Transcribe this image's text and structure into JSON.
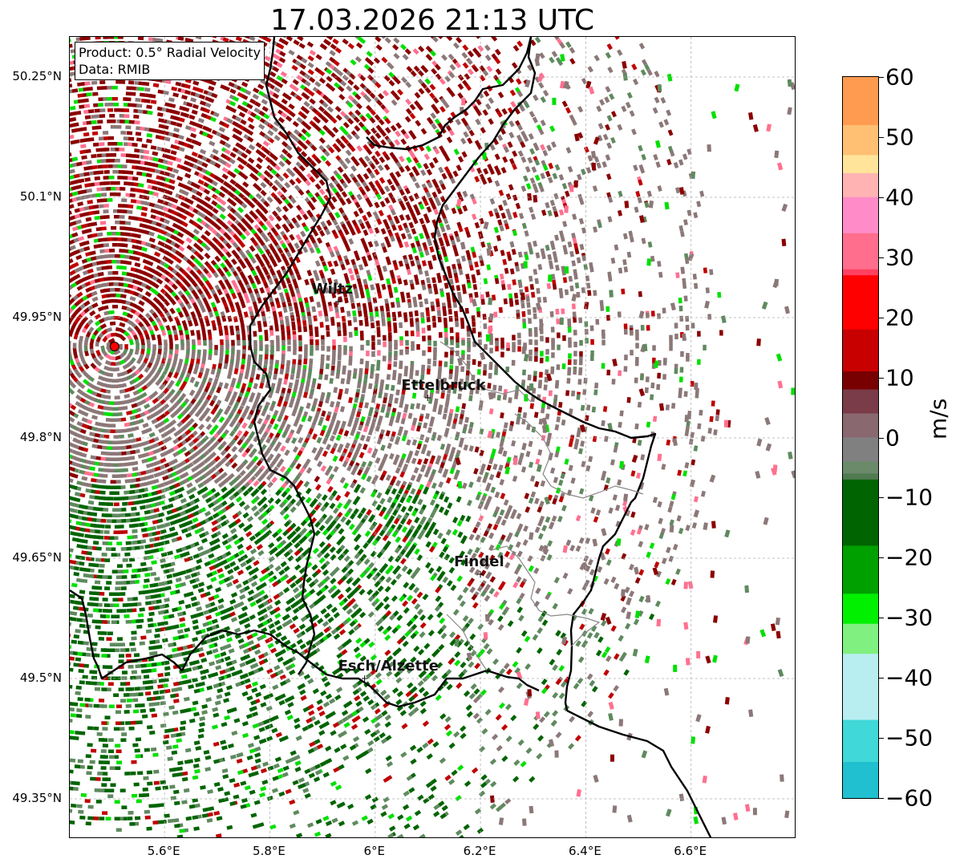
{
  "title": "17.03.2026 21:13 UTC",
  "info_box": {
    "product": "Product: 0.5° Radial Velocity",
    "source": "Data: RMIB"
  },
  "axes": {
    "lon_range": [
      5.42,
      6.8
    ],
    "lat_range": [
      49.3,
      50.3
    ],
    "x_ticks": [
      "5.6°E",
      "5.8°E",
      "6°E",
      "6.2°E",
      "6.4°E",
      "6.6°E"
    ],
    "x_tick_values": [
      5.6,
      5.8,
      6.0,
      6.2,
      6.4,
      6.6
    ],
    "y_ticks": [
      "50.25°N",
      "50.1°N",
      "49.95°N",
      "49.8°N",
      "49.65°N",
      "49.5°N",
      "49.35°N"
    ],
    "y_tick_values": [
      50.25,
      50.1,
      49.95,
      49.8,
      49.65,
      49.5,
      49.35
    ],
    "grid": true
  },
  "radar_site": {
    "lon": 5.505,
    "lat": 49.914,
    "color": "#ff0000"
  },
  "cities": [
    {
      "name": "Wiltz",
      "lon": 5.93,
      "lat": 49.97
    },
    {
      "name": "Ettelbruck",
      "lon": 6.1,
      "lat": 49.85
    },
    {
      "name": "Findel",
      "lon": 6.2,
      "lat": 49.63
    },
    {
      "name": "Esch/Alzette",
      "lon": 5.98,
      "lat": 49.5
    }
  ],
  "colorbar": {
    "label": "m/s",
    "min": -60,
    "max": 60,
    "ticks": [
      "60",
      "50",
      "40",
      "30",
      "20",
      "10",
      "0",
      "−10",
      "−20",
      "−30",
      "−40",
      "−50",
      "−60"
    ],
    "tick_values": [
      60,
      50,
      40,
      30,
      20,
      10,
      0,
      -10,
      -20,
      -30,
      -40,
      -50,
      -60
    ],
    "stops": [
      {
        "v": 60,
        "color": "#ff9b50"
      },
      {
        "v": 52,
        "color": "#ffc074"
      },
      {
        "v": 47,
        "color": "#ffe49a"
      },
      {
        "v": 44,
        "color": "#ffb3b3"
      },
      {
        "v": 40,
        "color": "#ff8cc8"
      },
      {
        "v": 34,
        "color": "#ff6e8c"
      },
      {
        "v": 28,
        "color": "#ff4060"
      },
      {
        "v": 27,
        "color": "#ff0000"
      },
      {
        "v": 18,
        "color": "#c80000"
      },
      {
        "v": 11,
        "color": "#780000"
      },
      {
        "v": 8,
        "color": "#7a3c48"
      },
      {
        "v": 4,
        "color": "#8a6870"
      },
      {
        "v": 0,
        "color": "#808080"
      },
      {
        "v": -4,
        "color": "#6a8a6a"
      },
      {
        "v": -6,
        "color": "#507a50"
      },
      {
        "v": -7,
        "color": "#006400"
      },
      {
        "v": -18,
        "color": "#00a000"
      },
      {
        "v": -26,
        "color": "#00f000"
      },
      {
        "v": -31,
        "color": "#80f080"
      },
      {
        "v": -36,
        "color": "#b8eef0"
      },
      {
        "v": -47,
        "color": "#40d8d8"
      },
      {
        "v": -54,
        "color": "#20c0d0"
      },
      {
        "v": -60,
        "color": "#1f77b4"
      }
    ]
  },
  "colors": {
    "inbound_dark": "#006400",
    "inbound_mid": "#5f8a5f",
    "inbound_bright": "#00e000",
    "neutral": "#8c7878",
    "outbound_dark": "#8b0000",
    "outbound_mid": "#c00000",
    "outbound_pink": "#ff7090",
    "border": "#000000",
    "canton": "#888888",
    "grid": "#b0b0b0"
  }
}
